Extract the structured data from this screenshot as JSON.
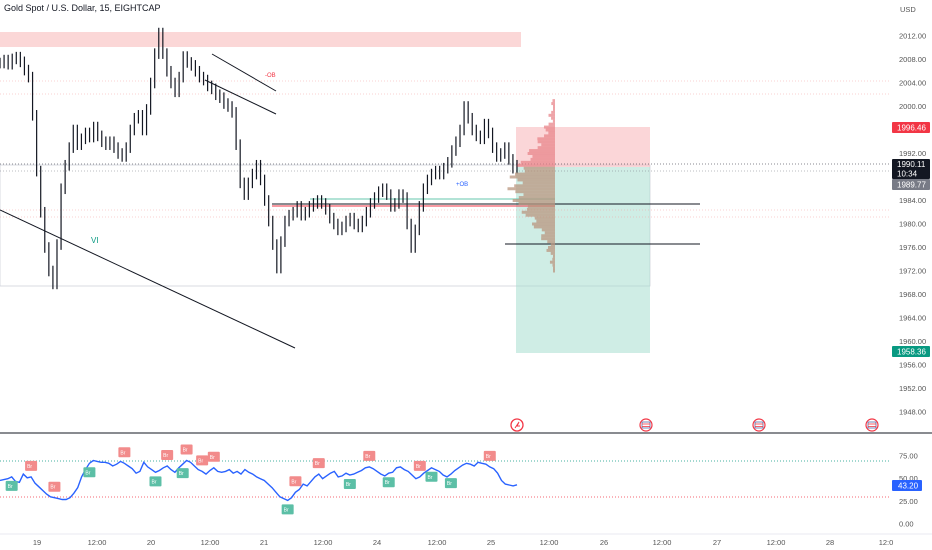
{
  "header": {
    "title": "Gold Spot / U.S. Dollar, 15, EIGHTCAP",
    "currency": "USD"
  },
  "chart_data": [
    {
      "type": "line",
      "title": "Gold Spot / U.S. Dollar, 15, EIGHTCAP",
      "ylim": [
        1945,
        2015
      ],
      "y_ticks": [
        "2012.00",
        "2008.00",
        "2004.00",
        "2000.00",
        "1996.00",
        "1992.00",
        "1988.00",
        "1984.00",
        "1980.00",
        "1976.00",
        "1972.00",
        "1968.00",
        "1964.00",
        "1960.00",
        "1956.00",
        "1952.00",
        "1948.00"
      ],
      "y_tick_values": [
        2012,
        2008,
        2004,
        2000,
        1996,
        1992,
        1988,
        1984,
        1980,
        1976,
        1972,
        1968,
        1964,
        1960,
        1956,
        1952,
        1948
      ],
      "x_ticks": [
        "19",
        "12:00",
        "20",
        "12:00",
        "21",
        "12:00",
        "24",
        "12:00",
        "25",
        "12:00",
        "26",
        "12:00",
        "27",
        "12:00",
        "28",
        "12:0"
      ],
      "price_labels": {
        "stop": {
          "value": "1996.46",
          "color": "#f23645"
        },
        "last": {
          "value": "1990.11",
          "countdown": "10:34",
          "color": "#131722"
        },
        "prev": {
          "value": "1989.77",
          "color": "#787b86"
        },
        "target": {
          "value": "1958.36",
          "color": "#089981"
        }
      },
      "annotations": {
        "ob_bear": "-OB",
        "ob_bull": "+OB",
        "vi": "VI"
      },
      "price": [
        2007.4,
        2007.9,
        2007.2,
        2008.1,
        2008.4,
        2007.6,
        2006.2,
        2005.0,
        1998.5,
        1989.0,
        1982.0,
        1976.0,
        1972.0,
        1969.8,
        1976.5,
        1986.0,
        1990.0,
        1993.0,
        1996.0,
        1993.5,
        1994.5,
        1995.5,
        1994.8,
        1996.5,
        1995.0,
        1994.0,
        1993.5,
        1994.0,
        1993.0,
        1992.0,
        1991.5,
        1993.0,
        1996.0,
        1998.0,
        1998.5,
        1996.0,
        1999.5,
        2004.0,
        2009.0,
        2012.5,
        2009.0,
        2006.0,
        2004.0,
        2002.5,
        2005.0,
        2008.5,
        2007.5,
        2007.0,
        2006.0,
        2005.0,
        2004.5,
        2003.5,
        2003.0,
        2002.0,
        2001.5,
        2000.5,
        2000.0,
        1999.0,
        1993.5,
        1987.0,
        1985.0,
        1987.0,
        1988.5,
        1990.0,
        1987.5,
        1984.0,
        1980.5,
        1976.5,
        1972.5,
        1977.0,
        1980.5,
        1981.5,
        1982.0,
        1983.0,
        1981.5,
        1982.0,
        1983.0,
        1983.5,
        1984.0,
        1983.5,
        1982.5,
        1981.0,
        1980.0,
        1979.0,
        1979.5,
        1980.5,
        1981.0,
        1980.0,
        1979.5,
        1980.5,
        1982.0,
        1983.5,
        1984.5,
        1985.5,
        1986.0,
        1985.0,
        1983.0,
        1983.5,
        1985.0,
        1984.5,
        1980.0,
        1976.0,
        1979.0,
        1983.0,
        1986.0,
        1987.5,
        1988.5,
        1989.0,
        1988.5,
        1989.5,
        1990.5,
        1992.5,
        1994.0,
        1996.0,
        2000.0,
        1998.0,
        1996.0,
        1995.0,
        1994.5,
        1997.0,
        1995.5,
        1993.0,
        1991.5,
        1992.0,
        1993.0,
        1991.0,
        1989.5,
        1990.0
      ]
    },
    {
      "type": "line",
      "title": "",
      "ylim": [
        0,
        100
      ],
      "y_ticks": [
        "75.00",
        "50.00",
        "25.00",
        "0.00"
      ],
      "y_tick_values": [
        75,
        50,
        25,
        0
      ],
      "current": "43.20",
      "values": [
        48,
        49,
        50,
        52,
        47,
        46,
        55,
        51,
        52,
        45,
        41,
        37,
        33,
        30,
        29,
        28,
        27,
        27,
        29,
        34,
        40,
        52,
        60,
        67,
        70,
        69,
        68,
        68,
        67,
        64,
        66,
        69,
        67,
        64,
        61,
        56,
        58,
        68,
        63,
        60,
        57,
        59,
        62,
        64,
        60,
        57,
        62,
        66,
        70,
        68,
        64,
        60,
        58,
        55,
        59,
        62,
        58,
        57,
        58,
        60,
        56,
        58,
        55,
        60,
        57,
        55,
        52,
        50,
        48,
        44,
        40,
        35,
        30,
        28,
        26,
        29,
        35,
        38,
        44,
        42,
        47,
        52,
        55,
        50,
        53,
        56,
        58,
        52,
        53,
        56,
        54,
        55,
        57,
        59,
        62,
        63,
        61,
        58,
        55,
        53,
        56,
        57,
        62,
        63,
        60,
        58,
        54,
        50,
        52,
        56,
        59,
        62,
        60,
        58,
        54,
        52,
        55,
        59,
        62,
        65,
        67,
        66,
        64,
        68,
        67,
        66,
        63,
        61,
        56,
        48,
        44,
        43,
        42,
        43.2
      ],
      "tags": [
        {
          "label": "Br",
          "kind": "bear",
          "i": 8
        },
        {
          "label": "Br",
          "kind": "bear",
          "i": 14
        },
        {
          "label": "Br",
          "kind": "bull",
          "i": 3
        },
        {
          "label": "Br",
          "kind": "bull",
          "i": 23
        },
        {
          "label": "Br",
          "kind": "bear",
          "i": 32
        },
        {
          "label": "Br",
          "kind": "bear",
          "i": 43
        },
        {
          "label": "Br",
          "kind": "bear",
          "i": 48
        },
        {
          "label": "Br",
          "kind": "bear",
          "i": 52
        },
        {
          "label": "Br",
          "kind": "bear",
          "i": 55
        },
        {
          "label": "Br",
          "kind": "bull",
          "i": 40
        },
        {
          "label": "Br",
          "kind": "bull",
          "i": 47
        },
        {
          "label": "Br",
          "kind": "bull",
          "i": 74
        },
        {
          "label": "Br",
          "kind": "bear",
          "i": 76
        },
        {
          "label": "Br",
          "kind": "bear",
          "i": 82
        },
        {
          "label": "Br",
          "kind": "bear",
          "i": 95
        },
        {
          "label": "Br",
          "kind": "bear",
          "i": 108
        },
        {
          "label": "Br",
          "kind": "bull",
          "i": 90
        },
        {
          "label": "Br",
          "kind": "bull",
          "i": 100
        },
        {
          "label": "Br",
          "kind": "bull",
          "i": 116
        },
        {
          "label": "Br",
          "kind": "bear",
          "i": 126
        },
        {
          "label": "Br",
          "kind": "bull",
          "i": 111
        }
      ]
    }
  ],
  "colors": {
    "bull": "#089981",
    "bear": "#f23645",
    "rsi_line": "#2962ff",
    "candle": "#131722",
    "bull_tag": "#5cbfa6",
    "bear_tag": "#f28b8b"
  }
}
